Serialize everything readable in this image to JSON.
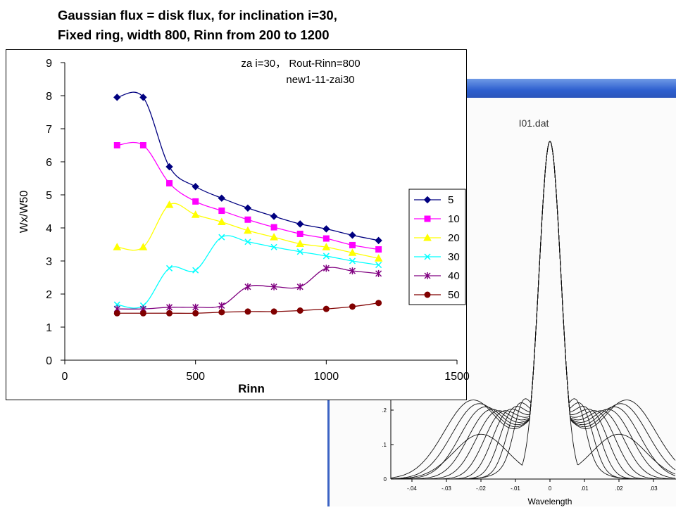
{
  "slide": {
    "title_line1": "Gaussian flux = disk flux, for inclination i=30,",
    "title_line2": "Fixed ring, width 800, Rinn from 200 to 1200"
  },
  "background_plot": {
    "title": "I01.dat",
    "xlabel": "Wavelength",
    "xticks": [
      "-.04",
      "-.03",
      "-.02",
      "-.01",
      "0",
      ".01",
      ".02",
      ".03"
    ],
    "yticks": [
      ".2",
      ".1",
      "0"
    ],
    "titlebar_color": "#3b63c4"
  },
  "chart_data": {
    "type": "line",
    "annotation_line1": "za i=30， Rout-Rinn=800",
    "annotation_line2": "new1-11-zai30",
    "xlabel": "Rinn",
    "ylabel": "Wx/W50",
    "xlim": [
      0,
      1500
    ],
    "ylim": [
      0,
      9
    ],
    "xticks": [
      "0",
      "500",
      "1000",
      "1500"
    ],
    "yticks": [
      "0",
      "1",
      "2",
      "3",
      "4",
      "5",
      "6",
      "7",
      "8",
      "9"
    ],
    "grid": false,
    "legend_position": "right",
    "x": [
      200,
      300,
      400,
      500,
      600,
      700,
      800,
      900,
      1000,
      1100,
      1200
    ],
    "series": [
      {
        "name": "5",
        "color": "#000080",
        "marker": "diamond",
        "values": [
          7.95,
          7.95,
          5.85,
          5.25,
          4.9,
          4.6,
          4.35,
          4.12,
          3.97,
          3.78,
          3.62
        ]
      },
      {
        "name": "10",
        "color": "#ff00ff",
        "marker": "square",
        "values": [
          6.5,
          6.5,
          5.35,
          4.8,
          4.52,
          4.25,
          4.02,
          3.82,
          3.68,
          3.48,
          3.35
        ]
      },
      {
        "name": "20",
        "color": "#ffff00",
        "marker": "triangle",
        "values": [
          3.42,
          3.42,
          4.7,
          4.4,
          4.18,
          3.92,
          3.72,
          3.52,
          3.42,
          3.25,
          3.08
        ]
      },
      {
        "name": "30",
        "color": "#00ffff",
        "marker": "x",
        "values": [
          1.68,
          1.65,
          2.78,
          2.72,
          3.72,
          3.58,
          3.42,
          3.28,
          3.15,
          3.0,
          2.88
        ]
      },
      {
        "name": "40",
        "color": "#800080",
        "marker": "star",
        "values": [
          1.55,
          1.55,
          1.6,
          1.6,
          1.65,
          2.22,
          2.22,
          2.22,
          2.78,
          2.7,
          2.62
        ]
      },
      {
        "name": "50",
        "color": "#800000",
        "marker": "circle",
        "values": [
          1.42,
          1.42,
          1.42,
          1.42,
          1.45,
          1.47,
          1.47,
          1.5,
          1.55,
          1.62,
          1.73
        ]
      }
    ]
  }
}
